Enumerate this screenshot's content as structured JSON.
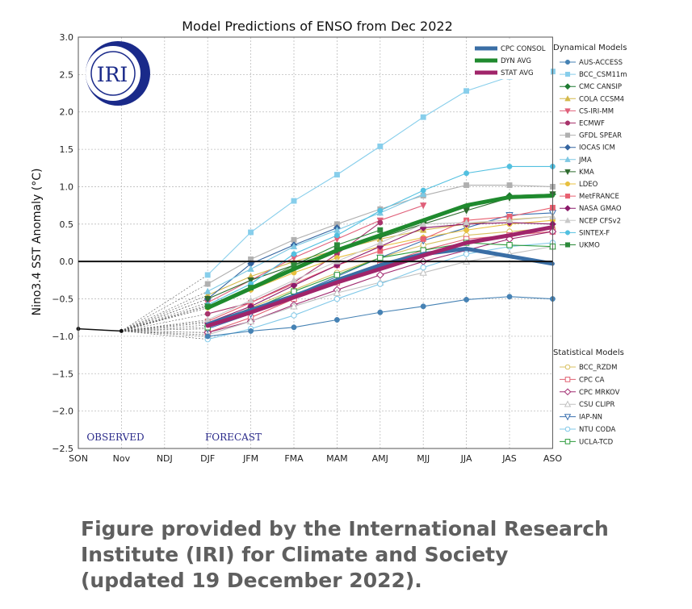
{
  "chart_data": {
    "type": "line",
    "title": "Model Predictions of ENSO from Dec 2022",
    "ylabel": "Nino3.4 SST Anomaly (°C)",
    "xlabel": "",
    "categories": [
      "SON",
      "Nov",
      "NDJ",
      "DJF",
      "JFM",
      "FMA",
      "MAM",
      "AMJ",
      "MJJ",
      "JJA",
      "JAS",
      "ASO"
    ],
    "yticks": [
      "3.0",
      "2.5",
      "2.0",
      "1.5",
      "1.0",
      "0.5",
      "0.0",
      "−0.5",
      "−1.0",
      "−1.5",
      "−2.0",
      "−2.5"
    ],
    "ylim": [
      -2.5,
      3.0
    ],
    "grid": true,
    "observed_label": "OBSERVED",
    "forecast_label": "FORECAST",
    "logo_text": "IRI",
    "observed": {
      "x": [
        "SON",
        "Nov"
      ],
      "values": [
        -0.9,
        -0.93
      ]
    },
    "forecast_x": [
      "DJF",
      "JFM",
      "FMA",
      "MAM",
      "AMJ",
      "MJJ",
      "JJA",
      "JAS",
      "ASO"
    ],
    "averages": [
      {
        "name": "CPC CONSOL",
        "color": "#3a6ea5",
        "values": [
          -0.84,
          -0.65,
          -0.46,
          -0.25,
          -0.05,
          0.1,
          0.17,
          0.07,
          -0.03
        ]
      },
      {
        "name": "DYN AVG",
        "color": "#1f8a2e",
        "values": [
          -0.62,
          -0.36,
          -0.1,
          0.15,
          0.35,
          0.55,
          0.75,
          0.86,
          0.88
        ]
      },
      {
        "name": "STAT AVG",
        "color": "#a0246a",
        "values": [
          -0.86,
          -0.68,
          -0.48,
          -0.28,
          -0.1,
          0.08,
          0.25,
          0.35,
          0.46
        ]
      }
    ],
    "dynamical_header": "Dynamical Models",
    "dynamical": [
      {
        "name": "AUS-ACCESS",
        "color": "#4682b4",
        "marker": "circle",
        "values": [
          -1.0,
          -0.93,
          -0.88,
          -0.78,
          -0.68,
          -0.6,
          -0.51,
          -0.47,
          -0.5
        ]
      },
      {
        "name": "BCC_CSM11m",
        "color": "#87ceeb",
        "marker": "square",
        "values": [
          -0.18,
          0.39,
          0.81,
          1.16,
          1.54,
          1.93,
          2.28,
          2.47,
          2.54
        ]
      },
      {
        "name": "CMC CANSIP",
        "color": "#1e7b32",
        "marker": "diamond",
        "values": [
          -0.6,
          -0.36,
          -0.1,
          0.14,
          0.34,
          0.53,
          0.73,
          0.88,
          0.9
        ]
      },
      {
        "name": "COLA CCSM4",
        "color": "#d4b84a",
        "marker": "triangle",
        "values": [
          -0.45,
          -0.2,
          0.0,
          0.15,
          0.3,
          0.42,
          0.5,
          0.56,
          0.6
        ]
      },
      {
        "name": "CS-IRI-MM",
        "color": "#e0607a",
        "marker": "triangle-down",
        "values": [
          -0.55,
          -0.25,
          0.05,
          0.3,
          0.55,
          0.75,
          null,
          null,
          null
        ]
      },
      {
        "name": "ECMWF",
        "color": "#a8326b",
        "marker": "circle",
        "values": [
          -0.7,
          -0.55,
          -0.28,
          0.1,
          0.52,
          null,
          null,
          null,
          null
        ]
      },
      {
        "name": "GFDL SPEAR",
        "color": "#b0b0b0",
        "marker": "square",
        "values": [
          -0.3,
          0.03,
          0.29,
          0.5,
          0.7,
          0.88,
          1.02,
          1.02,
          1.0
        ]
      },
      {
        "name": "IOCAS ICM",
        "color": "#3565a0",
        "marker": "diamond",
        "values": [
          -0.5,
          -0.03,
          0.22,
          0.45,
          null,
          null,
          null,
          null,
          null
        ]
      },
      {
        "name": "JMA",
        "color": "#7ec8e3",
        "marker": "triangle",
        "values": [
          -0.4,
          -0.1,
          0.2,
          0.42,
          0.65,
          0.9,
          null,
          null,
          null
        ]
      },
      {
        "name": "KMA",
        "color": "#2e6b2e",
        "marker": "triangle-down",
        "values": [
          -0.5,
          -0.25,
          -0.05,
          0.15,
          0.32,
          0.5,
          0.68,
          0.85,
          0.9
        ]
      },
      {
        "name": "LDEO",
        "color": "#e8c040",
        "marker": "circle",
        "values": [
          -0.62,
          -0.38,
          -0.15,
          0.05,
          0.2,
          0.32,
          0.42,
          0.5,
          0.55
        ]
      },
      {
        "name": "MetFRANCE",
        "color": "#e86070",
        "marker": "square",
        "values": [
          -0.8,
          -0.55,
          -0.3,
          -0.05,
          0.14,
          0.3,
          0.55,
          0.6,
          0.72
        ]
      },
      {
        "name": "NASA GMAO",
        "color": "#8b1a6a",
        "marker": "diamond",
        "values": [
          -0.82,
          -0.6,
          -0.32,
          -0.05,
          0.2,
          0.45,
          0.5,
          0.52,
          0.5
        ]
      },
      {
        "name": "NCEP CFSv2",
        "color": "#c8c8c8",
        "marker": "triangle",
        "values": [
          -0.78,
          -0.52,
          -0.25,
          0.0,
          0.25,
          0.5,
          0.52,
          0.55,
          0.6
        ]
      },
      {
        "name": "SINTEX-F",
        "color": "#52c0e0",
        "marker": "circle",
        "values": [
          -0.58,
          -0.3,
          0.1,
          0.35,
          0.68,
          0.95,
          1.18,
          1.27,
          1.27
        ]
      },
      {
        "name": "UKMO",
        "color": "#2c8a3a",
        "marker": "square",
        "values": [
          -0.6,
          -0.35,
          -0.05,
          0.22,
          0.42,
          null,
          null,
          null,
          null
        ]
      }
    ],
    "statistical_header": "Statistical Models",
    "statistical": [
      {
        "name": "BCC_RZDM",
        "color": "#d8c060",
        "marker": "circle-open",
        "values": [
          -0.85,
          -0.62,
          -0.38,
          -0.15,
          0.05,
          0.22,
          0.35,
          0.4,
          0.45
        ]
      },
      {
        "name": "CPC CA",
        "color": "#e06070",
        "marker": "square-open",
        "values": [
          -0.95,
          -0.75,
          -0.5,
          -0.28,
          -0.05,
          0.15,
          0.3,
          0.35,
          0.4
        ]
      },
      {
        "name": "CPC MRKOV",
        "color": "#a02a70",
        "marker": "diamond-open",
        "values": [
          -0.95,
          -0.8,
          -0.58,
          -0.38,
          -0.18,
          0.0,
          0.15,
          0.3,
          0.4
        ]
      },
      {
        "name": "CSU CLIPR",
        "color": "#c0c0c0",
        "marker": "triangle-open",
        "values": [
          -0.98,
          -0.8,
          -0.6,
          -0.42,
          -0.28,
          -0.15,
          0.0,
          0.1,
          0.2
        ]
      },
      {
        "name": "IAP-NN",
        "color": "#3a70b0",
        "marker": "triangle-down-open",
        "values": [
          -0.9,
          -0.7,
          -0.45,
          -0.2,
          0.05,
          0.28,
          0.45,
          0.62,
          0.65
        ]
      },
      {
        "name": "NTU CODA",
        "color": "#80c8e8",
        "marker": "circle-open",
        "values": [
          -1.04,
          -0.9,
          -0.72,
          -0.5,
          -0.3,
          -0.08,
          0.1,
          0.2,
          0.25
        ]
      },
      {
        "name": "UCLA-TCD",
        "color": "#2a9a3a",
        "marker": "square-open",
        "values": [
          -0.88,
          -0.65,
          -0.4,
          -0.18,
          0.05,
          0.15,
          0.25,
          0.22,
          0.2
        ]
      }
    ]
  },
  "caption": {
    "line1": "Figure provided by the International Research",
    "line2": "Institute (IRI) for Climate and Society",
    "line3": "(updated 19 December 2022)."
  }
}
